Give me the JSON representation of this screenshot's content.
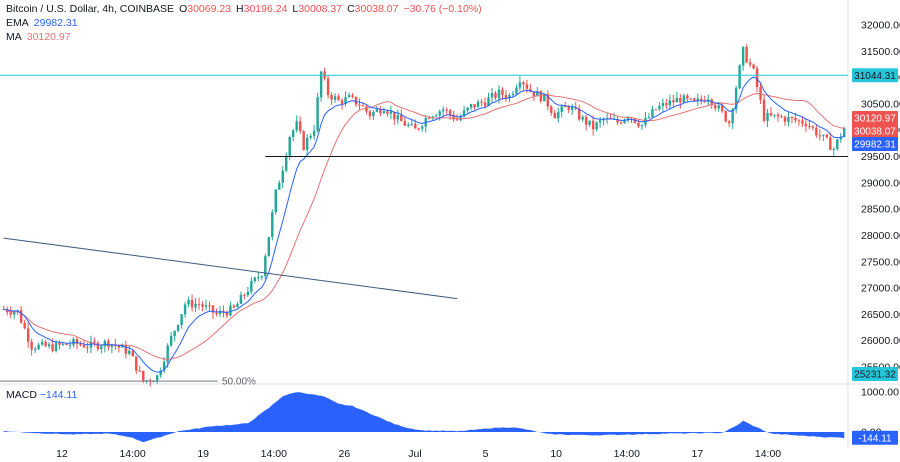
{
  "header": {
    "symbol_title": "Bitcoin / U.S. Dollar, 4h, COINBASE",
    "open_label": "O",
    "open": "30069.23",
    "high_label": "H",
    "high": "30196.24",
    "low_label": "L",
    "low": "30008.37",
    "close_label": "C",
    "close": "30038.07",
    "change": "−30.76 (−0.10%)"
  },
  "indicators": {
    "ema_label": "EMA",
    "ema_value": "29982.31",
    "ma_label": "MA",
    "ma_value": "30120.97"
  },
  "macd": {
    "label": "MACD",
    "value": "−144.11",
    "value_badge": "-144.11"
  },
  "price_badges": {
    "resistance": "31044.31",
    "ma": "30120.97",
    "close": "30038.07",
    "ema": "29982.31",
    "fib_level": "25231.32"
  },
  "annotations": {
    "fib_label": "50.00%"
  },
  "colors": {
    "up": "#26a69a",
    "down": "#ef5350",
    "ema": "#2962ff",
    "ma": "#e57373",
    "resistance": "#26c6da",
    "support": "#131722",
    "trend": "#3d5a80",
    "macd": "#2962ff",
    "text": "#131722",
    "axis_text": "#131722"
  },
  "chart_data": [
    {
      "type": "candlestick",
      "title": "Bitcoin / U.S. Dollar, 4h, COINBASE",
      "xlabel": "",
      "ylabel": "",
      "x_ticks": [
        "12",
        "14:00",
        "19",
        "14:00",
        "26",
        "Jul",
        "5",
        "10",
        "14:00",
        "17",
        "14:00"
      ],
      "y_ticks": [
        32000,
        31500,
        31000,
        30500,
        30000,
        29500,
        29000,
        28500,
        28000,
        27500,
        27000,
        26500,
        26000,
        25500
      ],
      "ylim": [
        25231,
        32300
      ],
      "grid": false,
      "close_anchors": [
        [
          0,
          26600
        ],
        [
          4,
          26550
        ],
        [
          8,
          25900
        ],
        [
          14,
          25880
        ],
        [
          20,
          25950
        ],
        [
          25,
          25900
        ],
        [
          30,
          25970
        ],
        [
          36,
          25780
        ],
        [
          40,
          25230
        ],
        [
          44,
          25320
        ],
        [
          48,
          26050
        ],
        [
          52,
          26700
        ],
        [
          56,
          26700
        ],
        [
          61,
          26500
        ],
        [
          66,
          26600
        ],
        [
          70,
          26980
        ],
        [
          74,
          27300
        ],
        [
          76,
          28000
        ],
        [
          78,
          28800
        ],
        [
          80,
          29300
        ],
        [
          82,
          29900
        ],
        [
          84,
          30100
        ],
        [
          86,
          29700
        ],
        [
          89,
          30050
        ],
        [
          91,
          31100
        ],
        [
          93,
          30700
        ],
        [
          96,
          30550
        ],
        [
          99,
          30600
        ],
        [
          102,
          30500
        ],
        [
          105,
          30300
        ],
        [
          109,
          30450
        ],
        [
          113,
          30200
        ],
        [
          118,
          30000
        ],
        [
          122,
          30300
        ],
        [
          126,
          30400
        ],
        [
          130,
          30200
        ],
        [
          134,
          30450
        ],
        [
          138,
          30550
        ],
        [
          142,
          30700
        ],
        [
          145,
          30650
        ],
        [
          148,
          31000
        ],
        [
          151,
          30750
        ],
        [
          155,
          30600
        ],
        [
          158,
          30300
        ],
        [
          162,
          30450
        ],
        [
          166,
          30200
        ],
        [
          169,
          30050
        ],
        [
          172,
          30200
        ],
        [
          176,
          30150
        ],
        [
          179,
          30300
        ],
        [
          183,
          30100
        ],
        [
          187,
          30400
        ],
        [
          190,
          30500
        ],
        [
          194,
          30600
        ],
        [
          198,
          30500
        ],
        [
          202,
          30650
        ],
        [
          205,
          30400
        ],
        [
          208,
          30150
        ],
        [
          212,
          31500
        ],
        [
          215,
          31100
        ],
        [
          218,
          30250
        ],
        [
          222,
          30250
        ],
        [
          226,
          30200
        ],
        [
          230,
          30150
        ],
        [
          234,
          29900
        ],
        [
          238,
          29650
        ],
        [
          241,
          30038
        ]
      ],
      "series": [
        {
          "name": "EMA",
          "value_last": 29982.31
        },
        {
          "name": "MA",
          "value_last": 30120.97
        }
      ],
      "horizontal_levels": [
        31044.31,
        29500,
        25231.32
      ],
      "trend_line": {
        "from": [
          0,
          27950
        ],
        "to": [
          130,
          26800
        ]
      },
      "fib_level": {
        "label": "50.00%",
        "value": 25231.32
      }
    },
    {
      "type": "area",
      "title": "MACD",
      "y_ticks": [
        1000.0,
        0.0
      ],
      "ylim": [
        -250,
        1050
      ],
      "last_value": -144.11,
      "anchors": [
        [
          0,
          20
        ],
        [
          10,
          -30
        ],
        [
          20,
          -60
        ],
        [
          30,
          -40
        ],
        [
          36,
          -120
        ],
        [
          40,
          -250
        ],
        [
          44,
          -150
        ],
        [
          50,
          20
        ],
        [
          55,
          80
        ],
        [
          60,
          150
        ],
        [
          66,
          180
        ],
        [
          70,
          220
        ],
        [
          76,
          600
        ],
        [
          80,
          900
        ],
        [
          84,
          1000
        ],
        [
          88,
          950
        ],
        [
          92,
          880
        ],
        [
          96,
          700
        ],
        [
          100,
          650
        ],
        [
          104,
          500
        ],
        [
          108,
          350
        ],
        [
          112,
          200
        ],
        [
          116,
          100
        ],
        [
          120,
          40
        ],
        [
          126,
          30
        ],
        [
          130,
          20
        ],
        [
          136,
          60
        ],
        [
          140,
          100
        ],
        [
          146,
          120
        ],
        [
          150,
          60
        ],
        [
          156,
          -50
        ],
        [
          162,
          -70
        ],
        [
          170,
          -80
        ],
        [
          180,
          -60
        ],
        [
          190,
          -40
        ],
        [
          200,
          -30
        ],
        [
          206,
          -20
        ],
        [
          210,
          150
        ],
        [
          212,
          280
        ],
        [
          215,
          150
        ],
        [
          220,
          -40
        ],
        [
          228,
          -90
        ],
        [
          236,
          -130
        ],
        [
          241,
          -144
        ]
      ]
    }
  ]
}
